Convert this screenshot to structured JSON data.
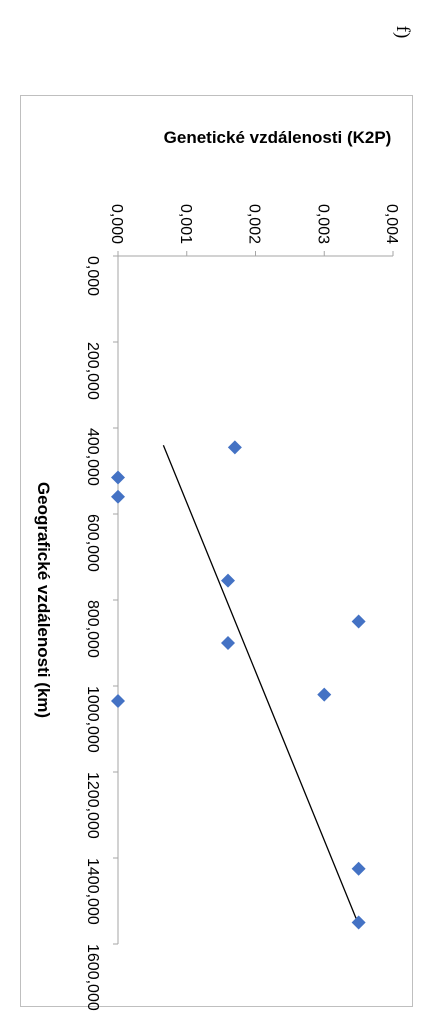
{
  "panel_label": "f)",
  "chart_data": {
    "type": "scatter",
    "title": "",
    "xlabel": "Geografické vzdálenosti (km)",
    "ylabel": "Genetické vzdálenosti (K2P)",
    "xlim": [
      0,
      1600
    ],
    "ylim": [
      0,
      0.004
    ],
    "x_ticks": [
      "0,000",
      "200,000",
      "400,000",
      "600,000",
      "800,000",
      "1000,000",
      "1200,000",
      "1400,000",
      "1600,000"
    ],
    "y_ticks": [
      "0,000",
      "0,001",
      "0,002",
      "0,003",
      "0,004"
    ],
    "series": [
      {
        "marker": "diamond",
        "color": "#4472c4",
        "points": [
          {
            "x": 515,
            "y": 0.0
          },
          {
            "x": 560,
            "y": 0.0
          },
          {
            "x": 1035,
            "y": 0.0
          },
          {
            "x": 445,
            "y": 0.0017
          },
          {
            "x": 755,
            "y": 0.0016
          },
          {
            "x": 900,
            "y": 0.0016
          },
          {
            "x": 1020,
            "y": 0.003
          },
          {
            "x": 850,
            "y": 0.0035
          },
          {
            "x": 1425,
            "y": 0.0035
          },
          {
            "x": 1550,
            "y": 0.0035
          }
        ]
      }
    ],
    "trendline": {
      "type": "linear",
      "color": "#000000",
      "x_range": [
        440,
        1555
      ],
      "y_start": 0.00066,
      "y_end": 0.0035
    },
    "grid": false,
    "legend": "none"
  }
}
